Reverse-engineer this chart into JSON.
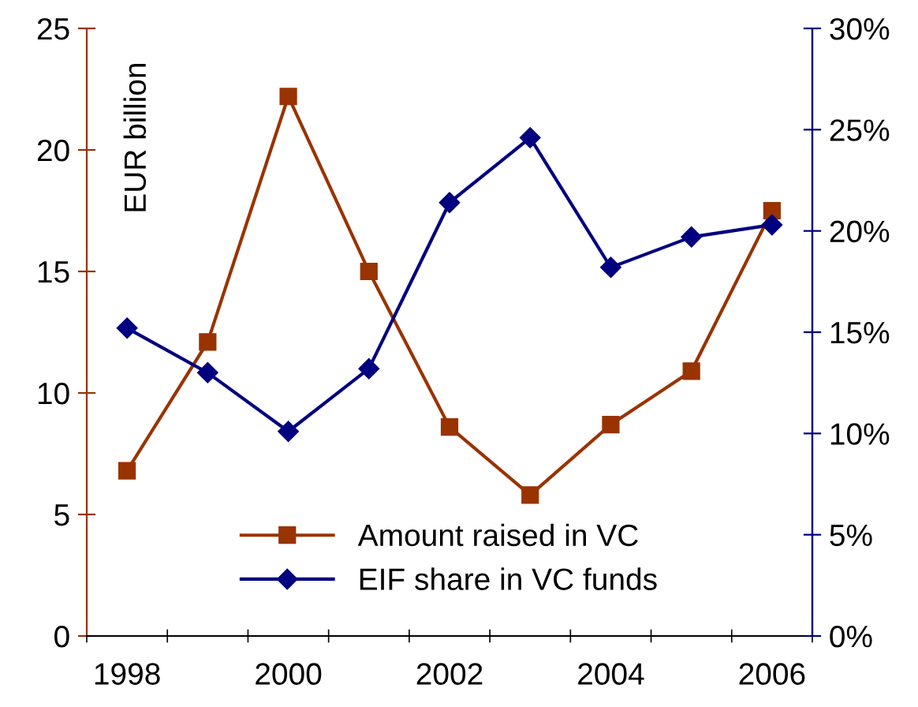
{
  "chart_data": {
    "type": "line",
    "ylabel": "EUR billion",
    "categories": [
      "1998",
      null,
      "2000",
      null,
      "2002",
      null,
      "2004",
      null,
      "2006"
    ],
    "series": [
      {
        "name": "Amount raised in VC",
        "color": "#993300",
        "marker": "square",
        "values": [
          6.8,
          12.1,
          22.2,
          15.0,
          8.6,
          5.8,
          8.7,
          10.9,
          17.5
        ]
      },
      {
        "name": "EIF share in VC funds",
        "color": "#000080",
        "marker": "diamond",
        "axis": "y2",
        "values": [
          15.2,
          13.0,
          10.1,
          13.2,
          21.4,
          24.6,
          18.2,
          19.7,
          20.3
        ]
      }
    ],
    "ylim": [
      0,
      25
    ],
    "yticks": [
      0,
      5,
      10,
      15,
      20,
      25
    ],
    "y2lim": [
      0,
      30
    ],
    "y2ticks": [
      {
        "value": 0,
        "label": "0%"
      },
      {
        "value": 5,
        "label": "5%"
      },
      {
        "value": 10,
        "label": "10%"
      },
      {
        "value": 15,
        "label": "15%"
      },
      {
        "value": 20,
        "label": "20%"
      },
      {
        "value": 25,
        "label": "25%"
      },
      {
        "value": 30,
        "label": "30%"
      }
    ],
    "grid": false,
    "legend": "bottom",
    "line_style": "solid"
  }
}
